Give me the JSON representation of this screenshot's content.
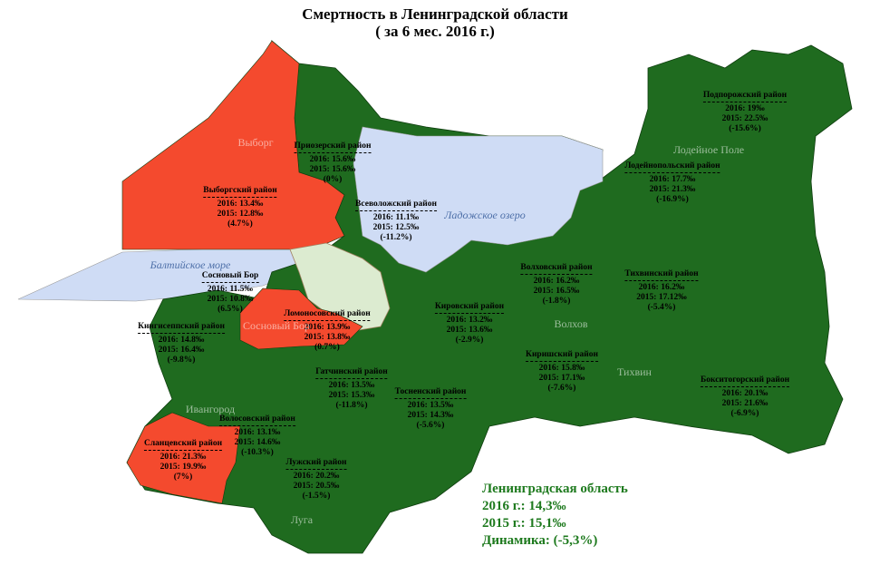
{
  "header": {
    "title": "Смертность в Ленинградской области",
    "subtitle": "( за 6 мес. 2016 г.)"
  },
  "regions": [
    {
      "name": "Подпорожский район",
      "y2016": "2016: 19‰",
      "y2015": "2015: 22.5‰",
      "change": "(-15.6%)"
    },
    {
      "name": "Лодейнопольский район",
      "y2016": "2016: 17.7‰",
      "y2015": "2015: 21.3‰",
      "change": "(-16.9%)"
    },
    {
      "name": "Приозерский район",
      "y2016": "2016: 15.6‰",
      "y2015": "2015: 15.6‰",
      "change": "(0%)"
    },
    {
      "name": "Выборгский район",
      "y2016": "2016: 13.4‰",
      "y2015": "2015: 12.8‰",
      "change": "(4.7%)"
    },
    {
      "name": "Всеволожский район",
      "y2016": "2016: 11.1‰",
      "y2015": "2015: 12.5‰",
      "change": "(-11.2%)"
    },
    {
      "name": "Сосновый Бор",
      "y2016": "2016: 11.5‰",
      "y2015": "2015: 10.8‰",
      "change": "(6.5%)"
    },
    {
      "name": "Ломоносовский район",
      "y2016": "2016: 13.9‰",
      "y2015": "2015: 13.8‰",
      "change": "(0.7%)"
    },
    {
      "name": "Кингисеппский район",
      "y2016": "2016: 14.8‰",
      "y2015": "2015: 16.4‰",
      "change": "(-9.8%)"
    },
    {
      "name": "Волховский район",
      "y2016": "2016: 16.2‰",
      "y2015": "2015: 16.5‰",
      "change": "(-1.8%)"
    },
    {
      "name": "Тихвинский район",
      "y2016": "2016: 16.2‰",
      "y2015": "2015: 17.12‰",
      "change": "(-5.4%)"
    },
    {
      "name": "Кировский район",
      "y2016": "2016: 13.2‰",
      "y2015": "2015: 13.6‰",
      "change": "(-2.9%)"
    },
    {
      "name": "Киришский район",
      "y2016": "2016: 15.8‰",
      "y2015": "2015: 17.1‰",
      "change": "(-7.6%)"
    },
    {
      "name": "Гатчинский район",
      "y2016": "2016: 13.5‰",
      "y2015": "2015: 15.3‰",
      "change": "(-11.8%)"
    },
    {
      "name": "Тосненский район",
      "y2016": "2016: 13.5‰",
      "y2015": "2015: 14.3‰",
      "change": "(-5.6%)"
    },
    {
      "name": "Бокситогорский район",
      "y2016": "2016: 20.1‰",
      "y2015": "2015: 21.6‰",
      "change": "(-6.9%)"
    },
    {
      "name": "Волосовский район",
      "y2016": "2016: 13.1‰",
      "y2015": "2015: 14.6‰",
      "change": "(-10.3%)"
    },
    {
      "name": "Сланцевский район",
      "y2016": "2016: 21.3‰",
      "y2015": "2015: 19.9‰",
      "change": "(7%)"
    },
    {
      "name": "Лужский район",
      "y2016": "2016: 20.2‰",
      "y2015": "2015: 20.5‰",
      "change": "(-1.5%)"
    }
  ],
  "places": [
    "Выборг",
    "Ладожское озеро",
    "Балтийское море",
    "Сосновый Бор",
    "Лодейное Поле",
    "Волхов",
    "Тихвин",
    "Ивангород",
    "Луга"
  ],
  "summary": {
    "title": "Ленинградская область",
    "y2016": "2016 г.: 14,3‰",
    "y2015": "2015 г.: 15,1‰",
    "change": "Динамика: (-5,3%)"
  }
}
